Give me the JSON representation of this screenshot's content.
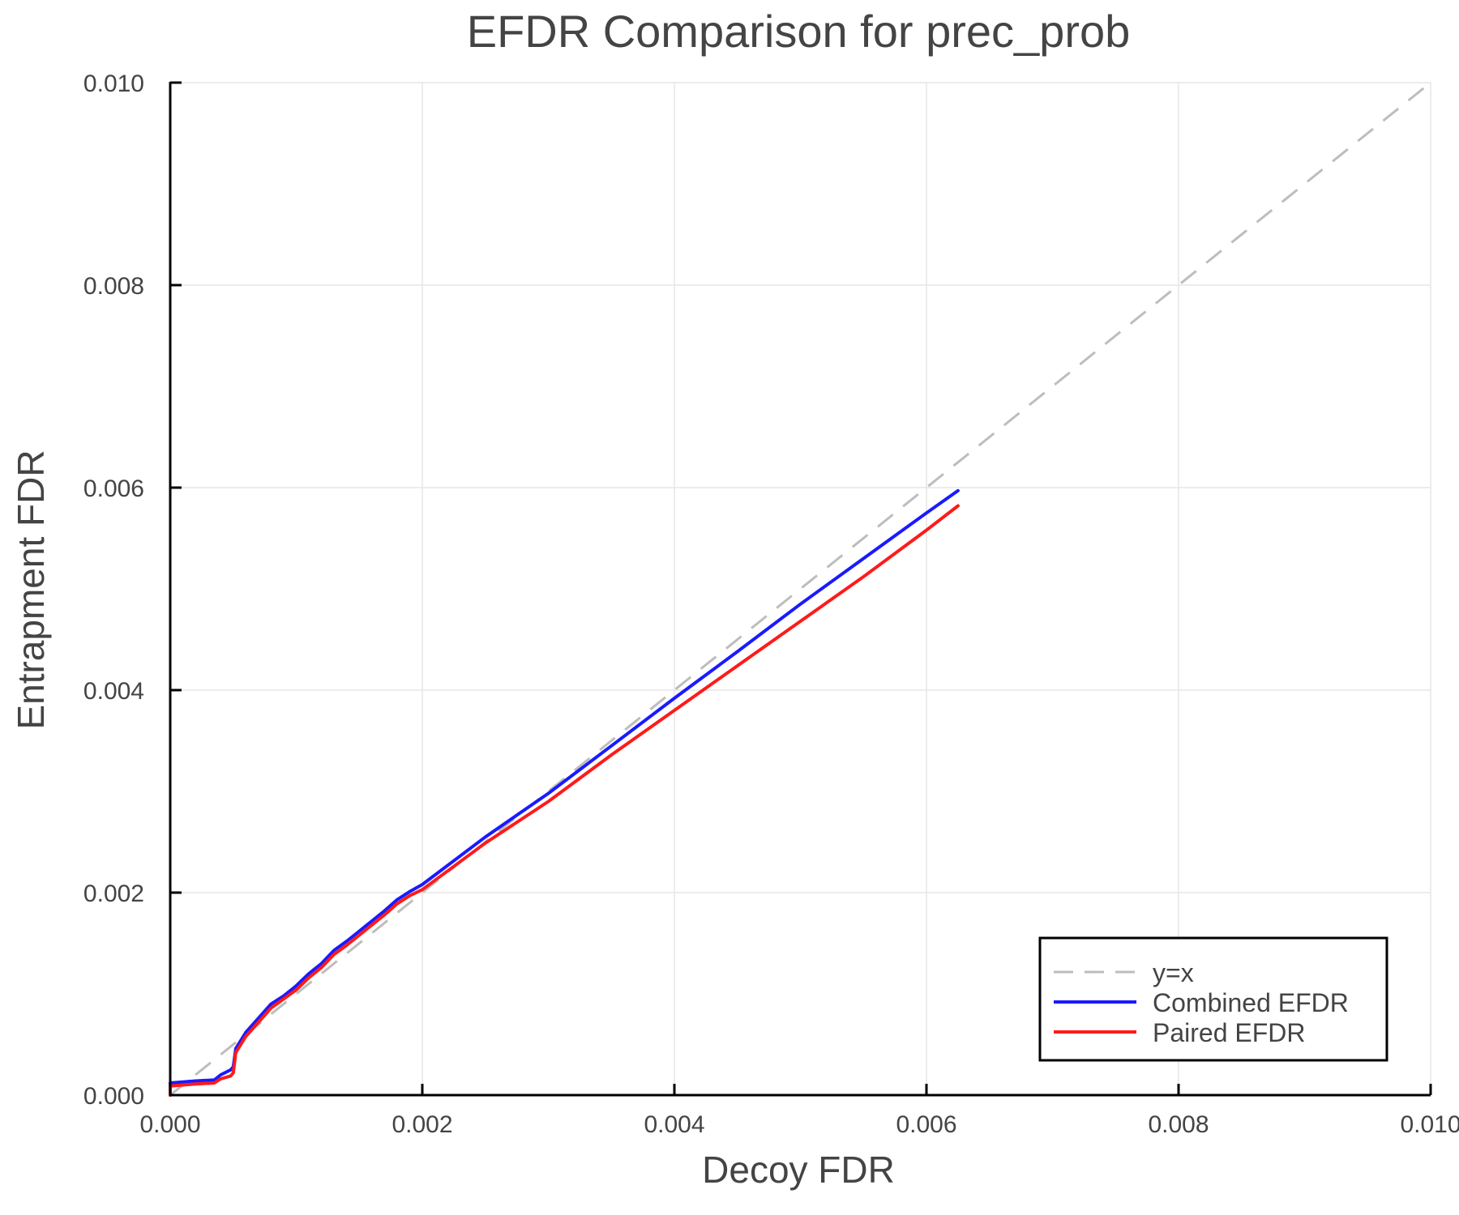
{
  "chart_data": {
    "type": "line",
    "title": "EFDR Comparison for prec_prob",
    "xlabel": "Decoy FDR",
    "ylabel": "Entrapment FDR",
    "xlim": [
      0.0,
      0.01
    ],
    "ylim": [
      0.0,
      0.01
    ],
    "x_ticks": [
      "0.000",
      "0.002",
      "0.004",
      "0.006",
      "0.008",
      "0.010"
    ],
    "y_ticks": [
      "0.000",
      "0.002",
      "0.004",
      "0.006",
      "0.008",
      "0.010"
    ],
    "grid": true,
    "legend_position": "bottom-right",
    "series": [
      {
        "name": "y=x",
        "style": "dashed",
        "color": "#bdbdbd",
        "x": [
          0.0,
          0.01
        ],
        "y": [
          0.0,
          0.01
        ]
      },
      {
        "name": "Combined EFDR",
        "style": "solid",
        "color": "#1a1aff",
        "x": [
          0.0,
          0.0,
          0.0002,
          0.00035,
          0.0004,
          0.00048,
          0.0005,
          0.00052,
          0.0006,
          0.0007,
          0.0008,
          0.0009,
          0.001,
          0.0011,
          0.0012,
          0.0013,
          0.0014,
          0.0015,
          0.0016,
          0.0017,
          0.0018,
          0.0019,
          0.002,
          0.0025,
          0.003,
          0.0035,
          0.004,
          0.0045,
          0.005,
          0.0055,
          0.006,
          0.00625
        ],
        "y": [
          0.0,
          0.00012,
          0.00014,
          0.00015,
          0.0002,
          0.00025,
          0.00028,
          0.00046,
          0.00062,
          0.00076,
          0.0009,
          0.00098,
          0.00108,
          0.0012,
          0.0013,
          0.00143,
          0.00152,
          0.00162,
          0.00172,
          0.00182,
          0.00193,
          0.00201,
          0.00208,
          0.00255,
          0.00298,
          0.00345,
          0.00392,
          0.00438,
          0.00485,
          0.0053,
          0.00575,
          0.00597
        ]
      },
      {
        "name": "Paired EFDR",
        "style": "solid",
        "color": "#ff1a1a",
        "x": [
          0.0,
          0.0,
          0.0002,
          0.00035,
          0.0004,
          0.00048,
          0.0005,
          0.00052,
          0.0006,
          0.0007,
          0.0008,
          0.0009,
          0.001,
          0.0011,
          0.0012,
          0.0013,
          0.0014,
          0.0015,
          0.0016,
          0.0017,
          0.0018,
          0.0019,
          0.002,
          0.0025,
          0.003,
          0.0035,
          0.004,
          0.0045,
          0.005,
          0.0055,
          0.006,
          0.00625
        ],
        "y": [
          0.0,
          9e-05,
          0.00011,
          0.00012,
          0.00016,
          0.00019,
          0.00022,
          0.00042,
          0.00058,
          0.00072,
          0.00086,
          0.00095,
          0.00104,
          0.00116,
          0.00126,
          0.00139,
          0.00148,
          0.00158,
          0.00168,
          0.00178,
          0.00189,
          0.00197,
          0.00203,
          0.00249,
          0.0029,
          0.00336,
          0.0038,
          0.00424,
          0.00468,
          0.00512,
          0.00558,
          0.00582
        ]
      }
    ]
  },
  "legend": {
    "items": [
      {
        "label": "y=x",
        "color": "#bdbdbd",
        "dashed": true
      },
      {
        "label": "Combined EFDR",
        "color": "#1a1aff",
        "dashed": false
      },
      {
        "label": "Paired EFDR",
        "color": "#ff1a1a",
        "dashed": false
      }
    ]
  }
}
